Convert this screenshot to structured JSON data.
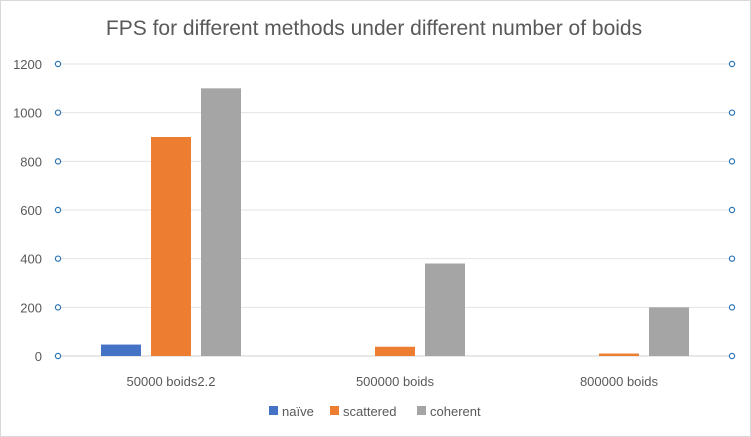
{
  "chart_data": {
    "type": "bar",
    "title": "FPS for different methods under different number of boids",
    "categories": [
      "50000 boids2.2",
      "500000 boids",
      "800000 boids"
    ],
    "series": [
      {
        "name": "naïve",
        "values": [
          47,
          0,
          0
        ],
        "color": "#4472c4"
      },
      {
        "name": "scattered",
        "values": [
          900,
          38,
          10
        ],
        "color": "#ed7d31"
      },
      {
        "name": "coherent",
        "values": [
          1100,
          380,
          200
        ],
        "color": "#a5a5a5"
      }
    ],
    "ylim": [
      0,
      1200
    ],
    "yticks": [
      0,
      200,
      400,
      600,
      800,
      1000,
      1200
    ],
    "grid": true,
    "legend_position": "bottom",
    "xlabel": "",
    "ylabel": ""
  }
}
